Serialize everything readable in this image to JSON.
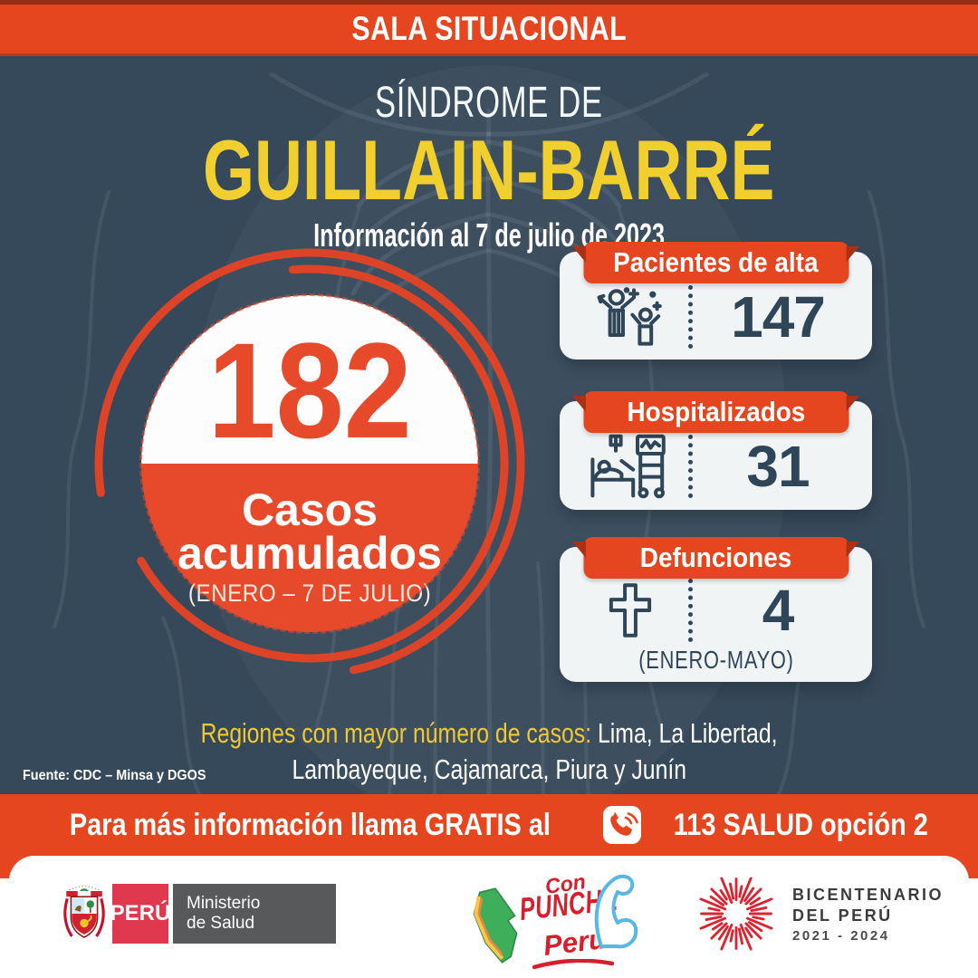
{
  "top_banner": {
    "title": "SALA SITUACIONAL"
  },
  "header": {
    "supertitle": "SÍNDROME DE",
    "title": "GUILLAIN-BARRÉ",
    "subtitle": "Información al 7 de julio de 2023"
  },
  "summary_circle": {
    "value": "182",
    "label_line1": "Casos",
    "label_line2": "acumulados",
    "period": "(ENERO – 7 DE JULIO)"
  },
  "stats": [
    {
      "label": "Pacientes de alta",
      "value": "147",
      "icon": "celebrating-people-icon",
      "note": ""
    },
    {
      "label": "Hospitalizados",
      "value": "31",
      "icon": "hospital-bed-icon",
      "note": ""
    },
    {
      "label": "Defunciones",
      "value": "4",
      "icon": "cross-icon",
      "note": "(ENERO-MAYO)"
    }
  ],
  "regions": {
    "highlight": "Regiones con mayor número de casos:",
    "rest_line1": "Lima, La Libertad,",
    "line2": "Lambayeque, Cajamarca, Piura y Junín"
  },
  "source": "Fuente: CDC – Minsa y DGOS",
  "info_banner": {
    "text_before": "Para más información llama GRATIS al",
    "phone_icon": "phone-icon",
    "text_after": "113 SALUD opción 2"
  },
  "footer": {
    "minsa": {
      "country": "PERÚ",
      "ministry_line1": "Ministerio",
      "ministry_line2": "de Salud"
    },
    "con_punche": {
      "word1": "Con",
      "word2": "PUNCHE",
      "word3": "Perú"
    },
    "bicentenario": {
      "line1": "BICENTENARIO",
      "line2": "DEL PERÚ",
      "line3": "2021 - 2024"
    }
  },
  "colors": {
    "accent_red": "#E5461F",
    "slate_background": "#36495A",
    "title_yellow": "#F1CF2F",
    "dark_text": "#2F4659",
    "minsa_red": "#E0394F",
    "logo_red": "#D61F2C"
  }
}
